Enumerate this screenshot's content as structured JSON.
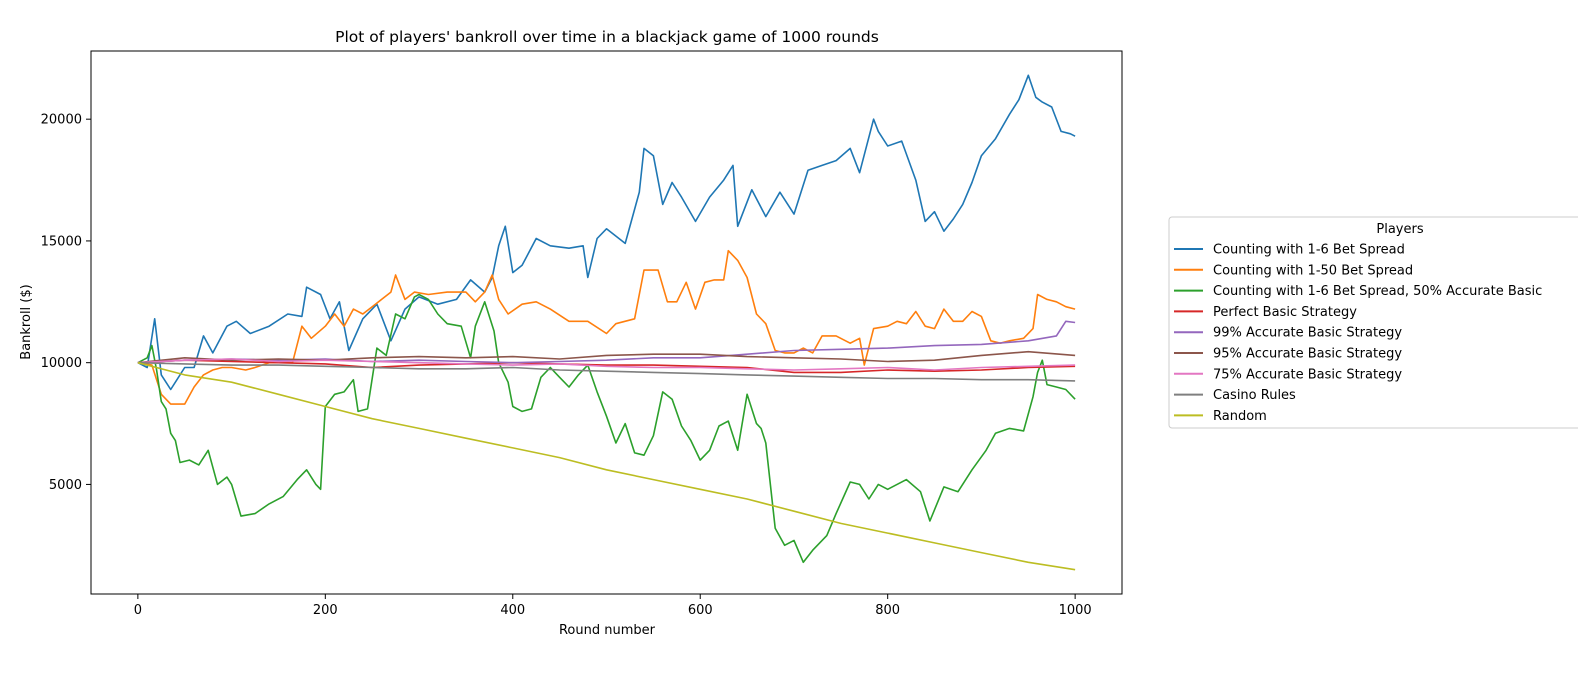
{
  "chart_data": {
    "type": "line",
    "title": "Plot of players' bankroll over time in a blackjack game of 1000 rounds",
    "xlabel": "Round number",
    "ylabel": "Bankroll ($)",
    "xlim": [
      -50,
      1050
    ],
    "ylim": [
      500,
      22800
    ],
    "xticks": [
      0,
      200,
      400,
      600,
      800,
      1000
    ],
    "yticks": [
      5000,
      10000,
      15000,
      20000
    ],
    "grid": false,
    "legend": {
      "title": "Players",
      "placement": "outside-right"
    },
    "series": [
      {
        "name": "Counting with 1-6 Bet Spread",
        "color": "#1f77b4",
        "x": [
          0,
          10,
          18,
          25,
          35,
          50,
          60,
          70,
          80,
          95,
          105,
          120,
          140,
          160,
          175,
          180,
          195,
          205,
          215,
          225,
          240,
          255,
          270,
          285,
          300,
          320,
          340,
          355,
          370,
          378,
          385,
          392,
          400,
          410,
          425,
          440,
          460,
          475,
          480,
          490,
          500,
          520,
          535,
          540,
          550,
          560,
          570,
          580,
          595,
          610,
          625,
          635,
          640,
          655,
          670,
          685,
          700,
          715,
          730,
          745,
          760,
          770,
          785,
          790,
          800,
          815,
          830,
          840,
          850,
          860,
          870,
          880,
          890,
          900,
          915,
          930,
          940,
          950,
          958,
          965,
          975,
          985,
          995,
          1000
        ],
        "values": [
          10000,
          9800,
          11800,
          9500,
          8900,
          9800,
          9800,
          11100,
          10400,
          11500,
          11700,
          11200,
          11500,
          12000,
          11900,
          13100,
          12800,
          11800,
          12500,
          10500,
          11800,
          12400,
          10900,
          12200,
          12700,
          12400,
          12600,
          13400,
          12900,
          13500,
          14800,
          15600,
          13700,
          14000,
          15100,
          14800,
          14700,
          14800,
          13500,
          15100,
          15500,
          14900,
          17000,
          18800,
          18500,
          16500,
          17400,
          16800,
          15800,
          16800,
          17500,
          18100,
          15600,
          17100,
          16000,
          17000,
          16100,
          17900,
          18100,
          18300,
          18800,
          17800,
          20000,
          19500,
          18900,
          19100,
          17500,
          15800,
          16200,
          15400,
          15900,
          16500,
          17400,
          18500,
          19200,
          20200,
          20800,
          21800,
          20900,
          20700,
          20500,
          19500,
          19400,
          19300
        ]
      },
      {
        "name": "Counting with 1-50 Bet Spread",
        "color": "#ff7f0e",
        "x": [
          0,
          15,
          25,
          35,
          50,
          60,
          70,
          80,
          90,
          100,
          115,
          125,
          140,
          155,
          165,
          175,
          185,
          200,
          210,
          220,
          230,
          240,
          250,
          260,
          270,
          275,
          285,
          295,
          310,
          330,
          350,
          360,
          370,
          378,
          385,
          395,
          410,
          425,
          440,
          460,
          480,
          500,
          510,
          530,
          540,
          555,
          565,
          575,
          585,
          595,
          605,
          615,
          625,
          630,
          640,
          650,
          660,
          670,
          680,
          690,
          700,
          710,
          720,
          730,
          745,
          760,
          770,
          775,
          785,
          800,
          810,
          820,
          830,
          840,
          850,
          860,
          870,
          880,
          890,
          900,
          910,
          920,
          930,
          945,
          955,
          960,
          970,
          980,
          990,
          1000
        ],
        "values": [
          10000,
          9900,
          8700,
          8300,
          8300,
          9000,
          9500,
          9700,
          9800,
          9800,
          9700,
          9800,
          10000,
          10000,
          10000,
          11500,
          11000,
          11500,
          12000,
          11500,
          12200,
          12000,
          12300,
          12600,
          12900,
          13600,
          12600,
          12900,
          12800,
          12900,
          12900,
          12500,
          12900,
          13600,
          12600,
          12000,
          12400,
          12500,
          12200,
          11700,
          11700,
          11200,
          11600,
          11800,
          13800,
          13800,
          12500,
          12500,
          13300,
          12200,
          13300,
          13400,
          13400,
          14600,
          14200,
          13500,
          12000,
          11600,
          10500,
          10400,
          10400,
          10600,
          10400,
          11100,
          11100,
          10800,
          11000,
          9900,
          11400,
          11500,
          11700,
          11600,
          12100,
          11500,
          11400,
          12200,
          11700,
          11700,
          12100,
          11900,
          10900,
          10800,
          10900,
          11000,
          11400,
          12800,
          12600,
          12500,
          12300,
          12200
        ]
      },
      {
        "name": "Counting with 1-6 Bet Spread, 50% Accurate Basic",
        "color": "#2ca02c",
        "x": [
          0,
          10,
          15,
          20,
          25,
          30,
          35,
          40,
          45,
          55,
          65,
          75,
          85,
          95,
          100,
          110,
          125,
          140,
          155,
          170,
          180,
          190,
          195,
          200,
          210,
          220,
          230,
          235,
          245,
          255,
          265,
          275,
          285,
          295,
          300,
          310,
          320,
          330,
          345,
          355,
          360,
          370,
          380,
          385,
          395,
          400,
          410,
          420,
          430,
          440,
          450,
          460,
          470,
          480,
          490,
          500,
          510,
          520,
          530,
          540,
          550,
          560,
          570,
          580,
          590,
          600,
          610,
          620,
          630,
          640,
          650,
          660,
          665,
          670,
          680,
          690,
          700,
          710,
          720,
          735,
          745,
          760,
          770,
          780,
          790,
          800,
          820,
          835,
          845,
          860,
          875,
          890,
          905,
          915,
          930,
          945,
          955,
          960,
          965,
          970,
          980,
          990,
          1000
        ],
        "values": [
          10000,
          10200,
          10700,
          9700,
          8400,
          8100,
          7100,
          6800,
          5900,
          6000,
          5800,
          6400,
          5000,
          5300,
          5000,
          3700,
          3800,
          4200,
          4500,
          5200,
          5600,
          5000,
          4800,
          8200,
          8700,
          8800,
          9300,
          8000,
          8100,
          10600,
          10300,
          12000,
          11800,
          12700,
          12800,
          12600,
          12000,
          11600,
          11500,
          10200,
          11500,
          12500,
          11300,
          10000,
          9200,
          8200,
          8000,
          8100,
          9400,
          9800,
          9400,
          9000,
          9500,
          9900,
          8800,
          7800,
          6700,
          7500,
          6300,
          6200,
          7000,
          8800,
          8500,
          7400,
          6800,
          6000,
          6400,
          7400,
          7600,
          6400,
          8700,
          7500,
          7300,
          6700,
          3200,
          2500,
          2700,
          1800,
          2300,
          2900,
          3800,
          5100,
          5000,
          4400,
          5000,
          4800,
          5200,
          4700,
          3500,
          4900,
          4700,
          5600,
          6400,
          7100,
          7300,
          7200,
          8600,
          9600,
          10100,
          9100,
          9000,
          8900,
          8500
        ]
      },
      {
        "name": "Perfect Basic Strategy",
        "color": "#d62728",
        "x": [
          0,
          50,
          100,
          150,
          200,
          250,
          300,
          350,
          400,
          450,
          500,
          550,
          600,
          650,
          700,
          750,
          800,
          850,
          900,
          950,
          1000
        ],
        "values": [
          10000,
          10100,
          10050,
          10000,
          9950,
          9800,
          9900,
          9950,
          10000,
          9950,
          9900,
          9900,
          9850,
          9800,
          9600,
          9600,
          9700,
          9650,
          9700,
          9800,
          9850
        ]
      },
      {
        "name": "99% Accurate Basic Strategy",
        "color": "#9467bd",
        "x": [
          0,
          50,
          100,
          150,
          200,
          250,
          300,
          350,
          400,
          450,
          500,
          550,
          600,
          650,
          700,
          750,
          800,
          850,
          900,
          950,
          980,
          990,
          1000
        ],
        "values": [
          10000,
          10100,
          10150,
          10100,
          10150,
          10050,
          10100,
          10050,
          10000,
          10050,
          10100,
          10200,
          10200,
          10350,
          10500,
          10550,
          10600,
          10700,
          10750,
          10900,
          11100,
          11700,
          11650
        ]
      },
      {
        "name": "95% Accurate Basic Strategy",
        "color": "#8c564b",
        "x": [
          0,
          50,
          100,
          150,
          200,
          250,
          300,
          350,
          400,
          450,
          500,
          550,
          600,
          650,
          700,
          750,
          800,
          850,
          900,
          950,
          1000
        ],
        "values": [
          10000,
          10200,
          10100,
          10150,
          10100,
          10200,
          10250,
          10200,
          10250,
          10150,
          10300,
          10350,
          10350,
          10250,
          10200,
          10150,
          10050,
          10100,
          10300,
          10450,
          10300
        ]
      },
      {
        "name": "75% Accurate Basic Strategy",
        "color": "#e377c2",
        "x": [
          0,
          50,
          100,
          150,
          200,
          250,
          300,
          350,
          400,
          450,
          500,
          550,
          600,
          650,
          700,
          750,
          800,
          850,
          900,
          950,
          1000
        ],
        "values": [
          10000,
          10100,
          10150,
          10050,
          10100,
          10050,
          10000,
          9950,
          9900,
          9950,
          9850,
          9800,
          9800,
          9750,
          9700,
          9750,
          9800,
          9700,
          9800,
          9850,
          9900
        ]
      },
      {
        "name": "Casino Rules",
        "color": "#7f7f7f",
        "x": [
          0,
          50,
          100,
          150,
          200,
          250,
          300,
          350,
          400,
          450,
          500,
          550,
          600,
          650,
          700,
          750,
          800,
          850,
          900,
          950,
          1000
        ],
        "values": [
          10000,
          9950,
          9900,
          9900,
          9850,
          9800,
          9750,
          9750,
          9800,
          9700,
          9650,
          9600,
          9550,
          9500,
          9450,
          9400,
          9350,
          9350,
          9300,
          9300,
          9250
        ]
      },
      {
        "name": "Random",
        "color": "#bcbd22",
        "x": [
          0,
          50,
          100,
          150,
          200,
          250,
          300,
          350,
          400,
          450,
          500,
          550,
          600,
          650,
          700,
          750,
          800,
          850,
          900,
          950,
          1000
        ],
        "values": [
          10000,
          9500,
          9200,
          8700,
          8200,
          7700,
          7300,
          6900,
          6500,
          6100,
          5600,
          5200,
          4800,
          4400,
          3900,
          3400,
          3000,
          2600,
          2200,
          1800,
          1500
        ]
      }
    ]
  }
}
